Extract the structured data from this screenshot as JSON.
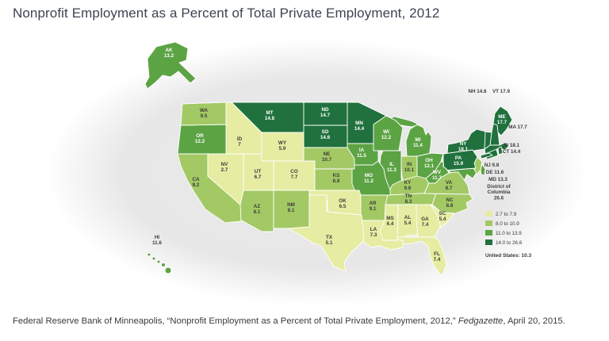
{
  "page": {
    "title": "Nonprofit Employment as a Percent of Total Private Employment, 2012",
    "citation_prefix": "Federal Reserve Bank of Minneapolis, “Nonprofit Employment as a Percent of Total Private Employment, 2012,” ",
    "citation_source": "Fedgazette",
    "citation_suffix": ", April 20, 2015."
  },
  "chart_data": {
    "type": "heatmap",
    "subtype": "us-state-choropleth",
    "title": "Nonprofit Employment as a Percent of Total Private Employment, 2012",
    "unit": "percent of total private employment",
    "legend_position": "right",
    "us_total_label": "United States: 10.3",
    "us_total_value": 10.3,
    "bins": [
      {
        "label": "2.7 to 7.9",
        "min": 2.7,
        "max": 7.9,
        "color": "#e6eca1"
      },
      {
        "label": "8.0 to 10.9",
        "min": 8.0,
        "max": 10.9,
        "color": "#a3c964"
      },
      {
        "label": "11.0 to 13.9",
        "min": 11.0,
        "max": 13.9,
        "color": "#5ca344"
      },
      {
        "label": "14.0 to 26.6",
        "min": 14.0,
        "max": 26.6,
        "color": "#20713d"
      }
    ],
    "states": [
      {
        "abbr": "AK",
        "value": 13.2
      },
      {
        "abbr": "AL",
        "value": 5.4
      },
      {
        "abbr": "AR",
        "value": 9.1
      },
      {
        "abbr": "AZ",
        "value": 8.1
      },
      {
        "abbr": "CA",
        "value": 8.2
      },
      {
        "abbr": "CO",
        "value": 7.7
      },
      {
        "abbr": "CT",
        "value": 14.4
      },
      {
        "abbr": "DC",
        "value": 26.6,
        "label_lines": [
          "District of",
          "Columbia"
        ]
      },
      {
        "abbr": "DE",
        "value": 11.6
      },
      {
        "abbr": "FL",
        "value": 7.4
      },
      {
        "abbr": "GA",
        "value": 7.4
      },
      {
        "abbr": "HI",
        "value": 11.6
      },
      {
        "abbr": "IA",
        "value": 11.5
      },
      {
        "abbr": "ID",
        "value": 7
      },
      {
        "abbr": "IL",
        "value": 11.3
      },
      {
        "abbr": "IN",
        "value": 10.1
      },
      {
        "abbr": "KS",
        "value": 8.8
      },
      {
        "abbr": "KY",
        "value": 9.6
      },
      {
        "abbr": "LA",
        "value": 7.3
      },
      {
        "abbr": "MA",
        "value": 17.7
      },
      {
        "abbr": "MD",
        "value": 13.3
      },
      {
        "abbr": "ME",
        "value": 17.7
      },
      {
        "abbr": "MI",
        "value": 11.4
      },
      {
        "abbr": "MN",
        "value": 14.4
      },
      {
        "abbr": "MO",
        "value": 11.2
      },
      {
        "abbr": "MS",
        "value": 6.4
      },
      {
        "abbr": "MT",
        "value": 14.8
      },
      {
        "abbr": "NC",
        "value": 8.8
      },
      {
        "abbr": "ND",
        "value": 14.7
      },
      {
        "abbr": "NE",
        "value": 10.7
      },
      {
        "abbr": "NH",
        "value": 14.6
      },
      {
        "abbr": "NJ",
        "value": 9.8
      },
      {
        "abbr": "NM",
        "value": 8.1
      },
      {
        "abbr": "NV",
        "value": 2.7
      },
      {
        "abbr": "NY",
        "value": 18.1
      },
      {
        "abbr": "OH",
        "value": 12.1
      },
      {
        "abbr": "OK",
        "value": 6.5
      },
      {
        "abbr": "OR",
        "value": 12.2
      },
      {
        "abbr": "PA",
        "value": 15.9
      },
      {
        "abbr": "RI",
        "value": 18.1
      },
      {
        "abbr": "SC",
        "value": 5.4
      },
      {
        "abbr": "SD",
        "value": 14.6
      },
      {
        "abbr": "TN",
        "value": 8.3
      },
      {
        "abbr": "TX",
        "value": 5.1
      },
      {
        "abbr": "UT",
        "value": 6.7
      },
      {
        "abbr": "VA",
        "value": 8.7
      },
      {
        "abbr": "VT",
        "value": 17.9
      },
      {
        "abbr": "WA",
        "value": 9.5
      },
      {
        "abbr": "WI",
        "value": 12.2
      },
      {
        "abbr": "WV",
        "value": 11.7
      },
      {
        "abbr": "WY",
        "value": 5.9
      }
    ]
  }
}
